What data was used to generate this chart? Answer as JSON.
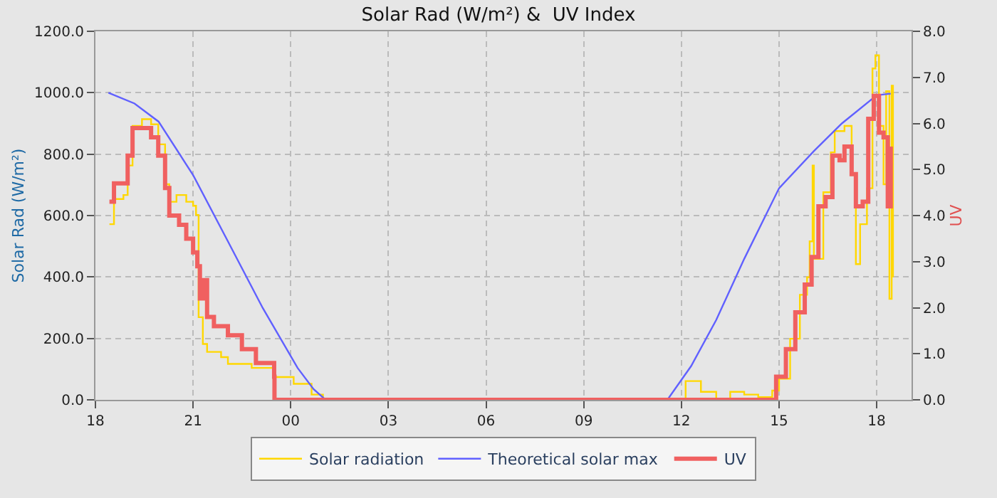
{
  "chart_data": {
    "type": "line",
    "title": "Solar Rad (W/m²) &  UV Index",
    "ylabel": "Solar Rad (W/m²)",
    "y2label": "UV",
    "xlim": [
      18,
      43.07
    ],
    "xticks": [
      {
        "value": 18,
        "label": "18"
      },
      {
        "value": 21,
        "label": "21"
      },
      {
        "value": 24,
        "label": "00"
      },
      {
        "value": 27,
        "label": "03"
      },
      {
        "value": 30,
        "label": "06"
      },
      {
        "value": 33,
        "label": "09"
      },
      {
        "value": 36,
        "label": "12"
      },
      {
        "value": 39,
        "label": "15"
      },
      {
        "value": 42,
        "label": "18"
      }
    ],
    "ylim": [
      0,
      1200
    ],
    "yticks": [
      {
        "value": 0,
        "label": "0.0"
      },
      {
        "value": 200,
        "label": "200.0"
      },
      {
        "value": 400,
        "label": "400.0"
      },
      {
        "value": 600,
        "label": "600.0"
      },
      {
        "value": 800,
        "label": "800.0"
      },
      {
        "value": 1000,
        "label": "1000.0"
      },
      {
        "value": 1200,
        "label": "1200.0"
      }
    ],
    "y2lim": [
      0,
      8
    ],
    "y2ticks": [
      {
        "value": 0,
        "label": "0.0"
      },
      {
        "value": 1,
        "label": "1.0"
      },
      {
        "value": 2,
        "label": "2.0"
      },
      {
        "value": 3,
        "label": "3.0"
      },
      {
        "value": 4,
        "label": "4.0"
      },
      {
        "value": 5,
        "label": "5.0"
      },
      {
        "value": 6,
        "label": "6.0"
      },
      {
        "value": 7,
        "label": "7.0"
      },
      {
        "value": 8,
        "label": "8.0"
      }
    ],
    "grid": true,
    "legend": "bottom",
    "line_style": "solid",
    "series": [
      {
        "name": "Solar radiation",
        "type": "step",
        "color": "#ffd700",
        "x": [
          18.43,
          18.57,
          18.86,
          18.99,
          19.14,
          19.43,
          19.71,
          19.93,
          20.14,
          20.27,
          20.49,
          20.79,
          21.0,
          21.09,
          21.17,
          21.3,
          21.43,
          21.86,
          22.07,
          22.8,
          23.49,
          24.09,
          24.64,
          24.99,
          25.1,
          35.9,
          36.13,
          36.6,
          37.07,
          37.5,
          37.93,
          38.36,
          38.79,
          39.0,
          39.34,
          39.64,
          39.86,
          39.94,
          40.03,
          40.07,
          40.36,
          40.59,
          40.71,
          41.01,
          41.23,
          41.36,
          41.49,
          41.7,
          41.87,
          41.96,
          42.07,
          42.21,
          42.29,
          42.39,
          42.46,
          42.5
        ],
        "values": [
          572,
          654,
          667,
          763,
          892,
          914,
          897,
          832,
          702,
          645,
          667,
          645,
          632,
          602,
          269,
          182,
          156,
          139,
          117,
          104,
          74,
          52,
          17,
          4,
          0,
          0,
          61,
          26,
          4,
          26,
          17,
          9,
          30,
          69,
          199,
          342,
          399,
          516,
          763,
          459,
          676,
          806,
          875,
          892,
          732,
          442,
          572,
          689,
          1079,
          1122,
          892,
          702,
          1005,
          329,
          1023,
          399
        ]
      },
      {
        "name": "Theoretical solar max",
        "color": "#6060ff",
        "x": [
          18.4,
          19.2,
          19.94,
          21.0,
          22.07,
          23.14,
          24.21,
          24.7,
          25.07,
          35.57,
          36.3,
          37.07,
          37.93,
          39.0,
          40.07,
          40.93,
          42.0,
          42.43
        ],
        "values": [
          1000,
          965,
          906,
          732,
          516,
          299,
          104,
          35,
          0,
          0,
          110,
          260,
          459,
          689,
          810,
          900,
          992,
          997
        ]
      },
      {
        "name": "UV",
        "type": "step",
        "axis": "y2",
        "color": "#f06060",
        "x": [
          18.43,
          18.57,
          18.86,
          18.99,
          19.14,
          19.64,
          19.71,
          19.93,
          20.14,
          20.27,
          20.57,
          20.79,
          21.0,
          21.13,
          21.21,
          21.34,
          21.43,
          21.64,
          22.07,
          22.5,
          22.93,
          23.49,
          23.5,
          38.9,
          38.91,
          39.21,
          39.5,
          39.79,
          40.0,
          40.21,
          40.43,
          40.64,
          40.86,
          41.01,
          41.23,
          41.36,
          41.57,
          41.74,
          41.91,
          42.07,
          42.21,
          42.34,
          42.43
        ],
        "values": [
          4.3,
          4.7,
          4.7,
          5.3,
          5.9,
          5.9,
          5.7,
          5.3,
          4.6,
          4.0,
          3.8,
          3.5,
          3.2,
          2.9,
          2.2,
          2.6,
          1.8,
          1.6,
          1.4,
          1.1,
          0.8,
          0.5,
          0,
          0,
          0.5,
          1.1,
          1.9,
          2.5,
          3.1,
          4.2,
          4.4,
          5.3,
          5.2,
          5.5,
          4.9,
          4.2,
          4.3,
          6.1,
          6.6,
          5.8,
          5.7,
          4.2,
          5.5
        ]
      }
    ]
  }
}
